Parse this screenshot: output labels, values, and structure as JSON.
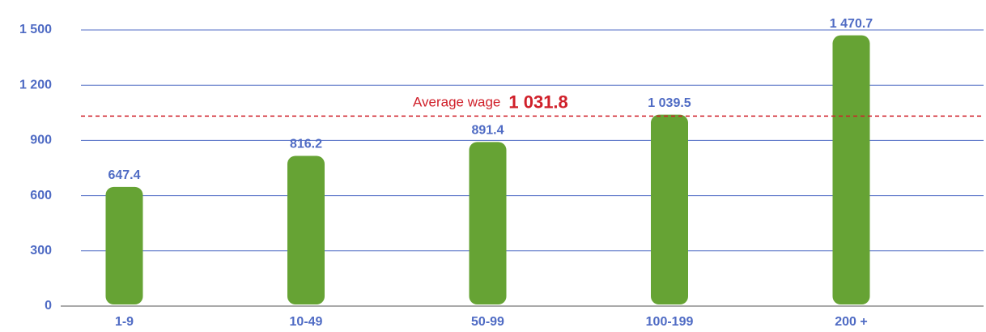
{
  "chart_data": {
    "type": "bar",
    "categories": [
      "1-9",
      "10-49",
      "50-99",
      "100-199",
      "200 +"
    ],
    "values": [
      647.4,
      816.2,
      891.4,
      1039.5,
      1470.7
    ],
    "value_labels": [
      "647.4",
      "816.2",
      "891.4",
      "1 039.5",
      "1 470.7"
    ],
    "color": "#66a334",
    "ylim": [
      0,
      1500
    ],
    "yticks": [
      0,
      300,
      600,
      900,
      {
        "value": 1200,
        "label": "1 200"
      },
      {
        "value": 1500,
        "label": "1 500"
      }
    ],
    "grid": true,
    "reference_line": {
      "label": "Average wage",
      "value": 1031.8,
      "value_label": "1 031.8",
      "color": "#d0202a"
    }
  }
}
